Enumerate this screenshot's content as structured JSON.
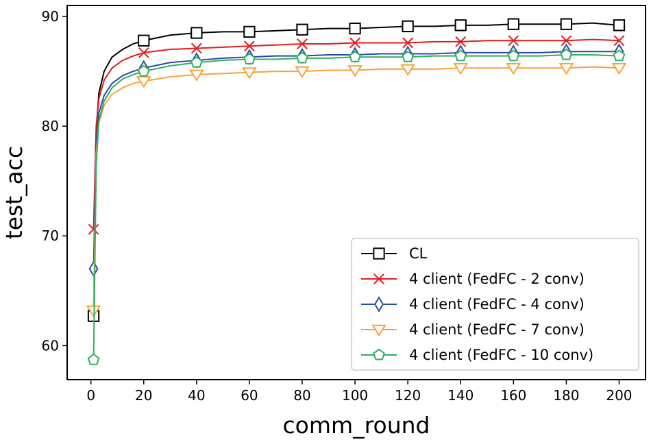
{
  "chart_data": {
    "type": "line",
    "xlabel": "comm_round",
    "ylabel": "test_acc",
    "xlim": [
      -9,
      210
    ],
    "ylim": [
      56.9,
      91.0
    ],
    "xticks": [
      0,
      20,
      40,
      60,
      80,
      100,
      120,
      140,
      160,
      180,
      200
    ],
    "yticks": [
      60,
      70,
      80,
      90
    ],
    "grid": false,
    "legend_position": "bottom-right",
    "series": [
      {
        "name": "CL",
        "color": "#000000",
        "marker": "square",
        "x": [
          1,
          2,
          3,
          5,
          8,
          12,
          16,
          20,
          30,
          40,
          50,
          60,
          70,
          80,
          90,
          100,
          110,
          120,
          130,
          140,
          150,
          160,
          170,
          180,
          190,
          200
        ],
        "values": [
          62.7,
          79.5,
          83.0,
          85.0,
          86.3,
          87.0,
          87.5,
          87.8,
          88.3,
          88.5,
          88.6,
          88.6,
          88.7,
          88.8,
          88.9,
          88.9,
          89.0,
          89.1,
          89.1,
          89.2,
          89.2,
          89.3,
          89.3,
          89.3,
          89.4,
          89.2
        ]
      },
      {
        "name": "4 client (FedFC - 2 conv)",
        "color": "#e41a1c",
        "marker": "x",
        "x": [
          1,
          2,
          3,
          5,
          8,
          12,
          16,
          20,
          30,
          40,
          50,
          60,
          70,
          80,
          90,
          100,
          110,
          120,
          130,
          140,
          150,
          160,
          170,
          180,
          190,
          200
        ],
        "values": [
          70.6,
          80.0,
          82.5,
          84.2,
          85.3,
          86.0,
          86.4,
          86.7,
          87.0,
          87.1,
          87.2,
          87.3,
          87.4,
          87.5,
          87.5,
          87.6,
          87.6,
          87.6,
          87.7,
          87.7,
          87.8,
          87.8,
          87.8,
          87.8,
          87.9,
          87.8
        ]
      },
      {
        "name": "4 client (FedFC - 4 conv)",
        "color": "#2b4aa3",
        "marker": "diamond",
        "x": [
          1,
          2,
          3,
          5,
          8,
          12,
          16,
          20,
          30,
          40,
          50,
          60,
          70,
          80,
          90,
          100,
          110,
          120,
          130,
          140,
          150,
          160,
          170,
          180,
          190,
          200
        ],
        "values": [
          67.0,
          78.5,
          81.2,
          82.8,
          83.9,
          84.6,
          85.0,
          85.3,
          85.8,
          86.0,
          86.2,
          86.3,
          86.4,
          86.4,
          86.5,
          86.5,
          86.6,
          86.6,
          86.6,
          86.7,
          86.7,
          86.7,
          86.7,
          86.8,
          86.8,
          86.8
        ]
      },
      {
        "name": "4 client (FedFC - 7 conv)",
        "color": "#f9a13b",
        "marker": "triangle-down",
        "x": [
          1,
          2,
          3,
          5,
          8,
          12,
          16,
          20,
          30,
          40,
          50,
          60,
          70,
          80,
          90,
          100,
          110,
          120,
          130,
          140,
          150,
          160,
          170,
          180,
          190,
          200
        ],
        "values": [
          63.2,
          77.5,
          80.3,
          81.9,
          82.9,
          83.5,
          83.9,
          84.1,
          84.5,
          84.7,
          84.8,
          84.9,
          85.0,
          85.0,
          85.1,
          85.1,
          85.2,
          85.2,
          85.2,
          85.3,
          85.3,
          85.3,
          85.3,
          85.3,
          85.4,
          85.3
        ]
      },
      {
        "name": "4 client (FedFC - 10 conv)",
        "color": "#2fae62",
        "marker": "pentagon",
        "x": [
          1,
          2,
          3,
          5,
          8,
          12,
          16,
          20,
          30,
          40,
          50,
          60,
          70,
          80,
          90,
          100,
          110,
          120,
          130,
          140,
          150,
          160,
          170,
          180,
          190,
          200
        ],
        "values": [
          58.7,
          76.5,
          80.5,
          82.3,
          83.5,
          84.3,
          84.7,
          85.0,
          85.5,
          85.8,
          86.0,
          86.1,
          86.1,
          86.2,
          86.2,
          86.3,
          86.3,
          86.3,
          86.4,
          86.4,
          86.4,
          86.4,
          86.4,
          86.5,
          86.5,
          86.4
        ]
      }
    ]
  }
}
